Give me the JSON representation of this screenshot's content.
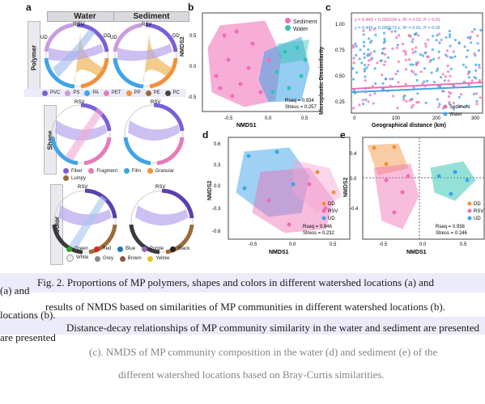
{
  "panel_a": {
    "label": "a",
    "col_water": "Water",
    "col_sediment": "Sediment",
    "row_polymer": "Polymer",
    "row_shape": "Shape",
    "row_color": "Color",
    "sectors": [
      "RSV",
      "DD",
      "UD"
    ],
    "polymer_legend": [
      "PVC",
      "PS",
      "PA",
      "PET",
      "PP",
      "PE",
      "PC"
    ],
    "shape_legend": [
      "Fiber",
      "Fragment",
      "Film",
      "Granular",
      "Lumpy"
    ],
    "color_legend": [
      "Green",
      "Red",
      "Blue",
      "Purple",
      "Black",
      "White",
      "Grey",
      "Brown",
      "Yellow"
    ]
  },
  "panel_b": {
    "label": "b",
    "xlabel": "NMDS1",
    "ylabel": "NMDS2",
    "legend": [
      "Sediment",
      "Water"
    ],
    "rseq": "Rseq = 0.934",
    "stress": "Stress = 0.257",
    "yticks": [
      "0.5",
      "0.0",
      "-0.5"
    ],
    "xticks": [
      "-0.5",
      "0.0",
      "0.5"
    ]
  },
  "panel_c": {
    "label": "c",
    "xlabel": "Geographical distance (km)",
    "ylabel": "Microplastic Dissimilarity",
    "eq1": "y = 0.440 + 0.000234 x, R² = 0.02, P < 0.01",
    "eq2": "y = 0.445 + 0.000173 x, R² = 0.01, P = 0.02",
    "legend": [
      "Sediment",
      "Water"
    ],
    "yticks": [
      "1.00",
      "0.75",
      "0.50",
      "0.25"
    ],
    "xticks": [
      "0",
      "100",
      "200",
      "300"
    ]
  },
  "panel_d": {
    "label": "d",
    "xlabel": "NMDS1",
    "ylabel": "NMDS2",
    "legend": [
      "DD",
      "RSV",
      "UD"
    ],
    "rseq": "Rseq = 0.946",
    "stress": "Stress = 0.232",
    "yticks": [
      "0.6",
      "0.3",
      "0.0",
      "-0.3",
      "-0.6"
    ],
    "xticks": [
      "-0.5",
      "0.0",
      "0.5"
    ]
  },
  "panel_e": {
    "label": "e",
    "xlabel": "NMDS1",
    "ylabel": "NMDS2",
    "legend": [
      "DD",
      "RSV",
      "UD"
    ],
    "rseq": "Rseq = 0.938",
    "stress": "Stress = 0.246",
    "yticks": [
      "0.4",
      "0.0",
      "-0.4"
    ],
    "xticks": [
      "-0.5",
      "0.0",
      "0.5"
    ]
  },
  "colors": {
    "pink": "#f06cb6",
    "blue": "#3fa4e8",
    "teal": "#2ec4b0",
    "orange": "#f0913a",
    "purple": "#7a5fd6",
    "lavender_band": "#ecebfa"
  },
  "caption": {
    "line1": "Fig. 2. Proportions of MP polymers, shapes and colors in different watershed locations (a) and",
    "line2": "results of NMDS based on similarities of MP communities in different watershed locations (b).",
    "line3": "Distance-decay relationships of MP community similarity in the water and sediment are presented",
    "line4": "(c). NMDS of MP community composition in the water (d) and sediment (e) of the",
    "line5": "different watershed locations based on Bray-Curtis similarities.",
    "side1": "(a) and",
    "side2": "locations (b).",
    "side3": "are presented"
  }
}
